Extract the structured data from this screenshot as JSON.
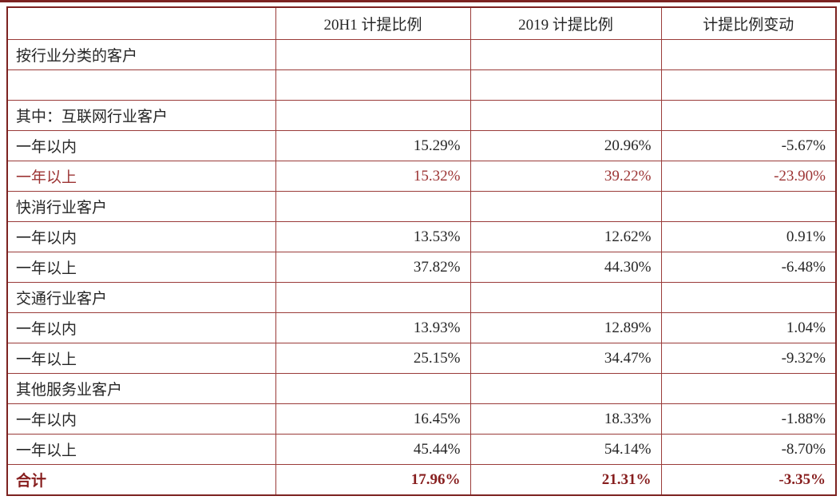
{
  "colors": {
    "border": "#9a3b39",
    "border_strong": "#7c2220",
    "text": "#262626",
    "highlight_red": "#9c3434",
    "total_red": "#871e1e"
  },
  "chart_data": {
    "type": "table",
    "title": "",
    "columns": [
      "",
      "20H1 计提比例",
      "2019 计提比例",
      "计提比例变动"
    ],
    "rows": [
      {
        "cells": [
          "按行业分类的客户",
          "",
          "",
          ""
        ],
        "emphasis": ""
      },
      {
        "cells": [
          "",
          "",
          "",
          ""
        ],
        "emphasis": ""
      },
      {
        "cells": [
          "其中：互联网行业客户",
          "",
          "",
          ""
        ],
        "emphasis": ""
      },
      {
        "cells": [
          "一年以内",
          "15.29%",
          "20.96%",
          "-5.67%"
        ],
        "emphasis": ""
      },
      {
        "cells": [
          "一年以上",
          "15.32%",
          "39.22%",
          "-23.90%"
        ],
        "emphasis": "red"
      },
      {
        "cells": [
          "快消行业客户",
          "",
          "",
          ""
        ],
        "emphasis": ""
      },
      {
        "cells": [
          "一年以内",
          "13.53%",
          "12.62%",
          "0.91%"
        ],
        "emphasis": ""
      },
      {
        "cells": [
          "一年以上",
          "37.82%",
          "44.30%",
          "-6.48%"
        ],
        "emphasis": ""
      },
      {
        "cells": [
          "交通行业客户",
          "",
          "",
          ""
        ],
        "emphasis": ""
      },
      {
        "cells": [
          "一年以内",
          "13.93%",
          "12.89%",
          "1.04%"
        ],
        "emphasis": ""
      },
      {
        "cells": [
          "一年以上",
          "25.15%",
          "34.47%",
          "-9.32%"
        ],
        "emphasis": ""
      },
      {
        "cells": [
          "其他服务业客户",
          "",
          "",
          ""
        ],
        "emphasis": ""
      },
      {
        "cells": [
          "一年以内",
          "16.45%",
          "18.33%",
          "-1.88%"
        ],
        "emphasis": ""
      },
      {
        "cells": [
          "一年以上",
          "45.44%",
          "54.14%",
          "-8.70%"
        ],
        "emphasis": ""
      },
      {
        "cells": [
          "合计",
          "17.96%",
          "21.31%",
          "-3.35%"
        ],
        "emphasis": "red-bold"
      }
    ]
  }
}
